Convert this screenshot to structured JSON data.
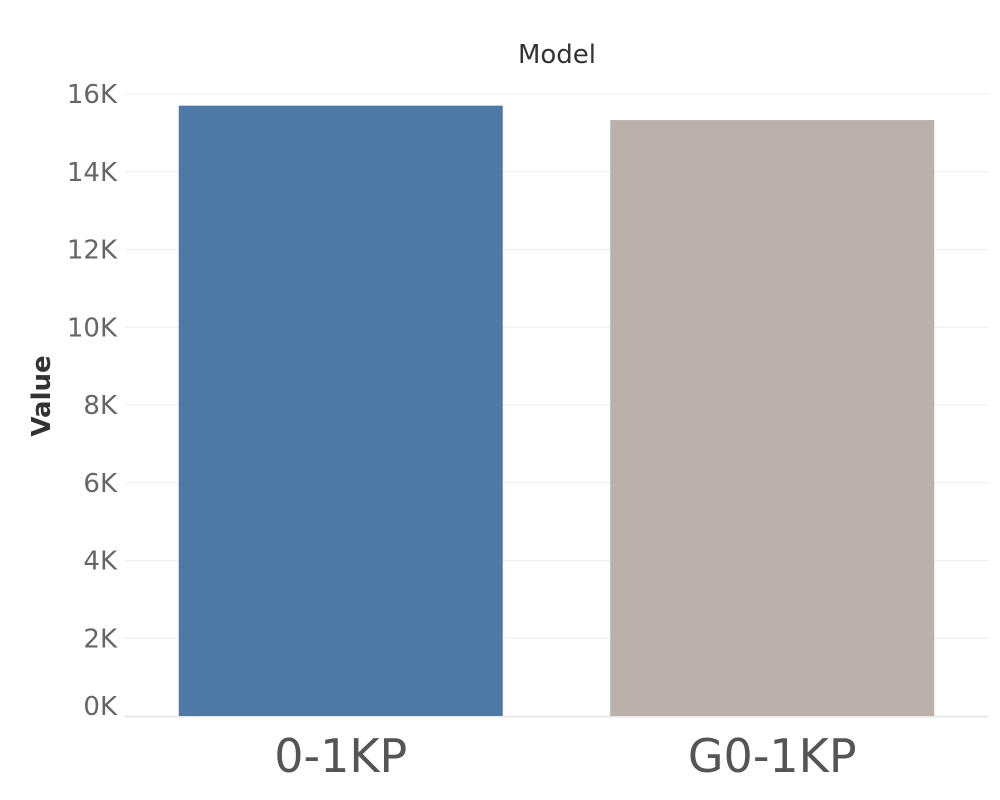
{
  "chart_data": {
    "type": "bar",
    "title": "Model",
    "xlabel": "",
    "ylabel": "Value",
    "categories": [
      "0-1KP",
      "G0-1KP"
    ],
    "values": [
      15700,
      15330
    ],
    "colors": [
      "#4e79a7",
      "#bab0ac"
    ],
    "yticks": [
      0,
      2000,
      4000,
      6000,
      8000,
      10000,
      12000,
      14000,
      16000
    ],
    "ytick_labels": [
      "0K",
      "2K",
      "4K",
      "6K",
      "8K",
      "10K",
      "12K",
      "14K",
      "16K"
    ],
    "ylim": [
      0,
      16000
    ],
    "grid": true,
    "legend": "none"
  }
}
